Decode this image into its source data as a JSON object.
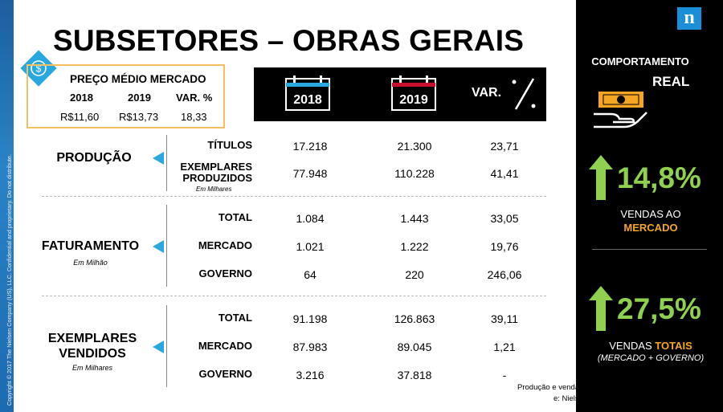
{
  "sidebar": {
    "legal_text": "Copyright © 2017 The Nielsen Company (US), LLC. Confidential and proprietary. Do not distribute."
  },
  "title": "SUBSETORES – OBRAS GERAIS",
  "price": {
    "header": "PREÇO MÉDIO MERCADO",
    "cols": [
      "2018",
      "2019",
      "VAR. %"
    ],
    "values": [
      "R$11,60",
      "R$13,73",
      "18,33"
    ]
  },
  "header_bar": {
    "y2018": "2018",
    "y2019": "2019",
    "var": "VAR."
  },
  "producao": {
    "label": "PRODUÇÃO",
    "rows": [
      {
        "label": "TÍTULOS",
        "v2018": "17.218",
        "v2019": "21.300",
        "var": "23,71"
      },
      {
        "label": "EXEMPLARES\nPRODUZIDOS",
        "note": "Em Milhares",
        "v2018": "77.948",
        "v2019": "110.228",
        "var": "41,41"
      }
    ]
  },
  "faturamento": {
    "label": "FATURAMENTO",
    "note": "Em Milhão",
    "rows": [
      {
        "label": "TOTAL",
        "v2018": "1.084",
        "v2019": "1.443",
        "var": "33,05"
      },
      {
        "label": "MERCADO",
        "v2018": "1.021",
        "v2019": "1.222",
        "var": "19,76"
      },
      {
        "label": "GOVERNO",
        "v2018": "64",
        "v2019": "220",
        "var": "246,06"
      }
    ]
  },
  "exemplares": {
    "label_line1": "EXEMPLARES",
    "label_line2": "VENDIDOS",
    "note": "Em Milhares",
    "rows": [
      {
        "label": "TOTAL",
        "v2018": "91.198",
        "v2019": "126.863",
        "var": "39,11"
      },
      {
        "label": "MERCADO",
        "v2018": "87.983",
        "v2019": "89.045",
        "var": "1,21"
      },
      {
        "label": "GOVERNO",
        "v2018": "3.216",
        "v2019": "37.818",
        "var": "-"
      }
    ]
  },
  "source": {
    "line1": "Produção e vendas do setor editorial brasileiro",
    "line2": "e: Nielsen | Nielsen Book"
  },
  "right_panel": {
    "logo": "n",
    "title_line1": "COMPORTAMENTO",
    "title_line2": "REAL",
    "stat1": {
      "value": "14,8%",
      "line1": "VENDAS AO",
      "line2": "MERCADO"
    },
    "stat2": {
      "value": "27,5%",
      "line1_a": "VENDAS ",
      "line1_b": "TOTAIS",
      "line2": "(MERCADO + GOVERNO)"
    }
  },
  "colors": {
    "accent_blue": "#29a8e0",
    "green": "#8fd14f",
    "orange": "#f5a623",
    "box_border": "#f5c062"
  }
}
